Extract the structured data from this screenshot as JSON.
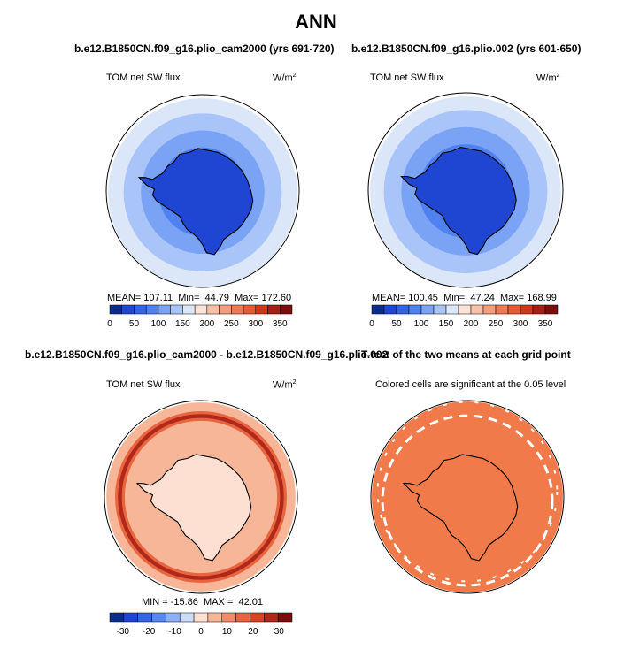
{
  "page": {
    "title": "ANN"
  },
  "colors": {
    "sw_scale": [
      "#0a2d8c",
      "#1e46d2",
      "#3264e6",
      "#4f82f0",
      "#7aa2f5",
      "#a8c4f8",
      "#dbe7f8",
      "#fde3d6",
      "#f8c0a6",
      "#f49c7c",
      "#ef7855",
      "#e85a32",
      "#d0381c",
      "#a81e14",
      "#7d0c0c"
    ],
    "diff_scale": [
      "#0a2d8c",
      "#1e46d2",
      "#3264e6",
      "#5a86f0",
      "#8eaef5",
      "#cadcf6",
      "#fde0d2",
      "#f7b698",
      "#f08c6a",
      "#e8663f",
      "#d84522",
      "#b0281a",
      "#7d0c0c"
    ],
    "signif_fill": "#f07a4a",
    "ocean_light": "#bed0f6",
    "coast": "#000000"
  },
  "chart_data": [
    {
      "type": "heatmap",
      "projection": "south polar stereographic",
      "title": "b.e12.B1850CN.f09_g16.plio_cam2000 (yrs 691-720)",
      "field_label": "TOM net SW flux",
      "units": "W/m",
      "units_sup": "2",
      "stats": {
        "mean_label": "MEAN=",
        "mean": "107.11",
        "min_label": "Min=",
        "min": "44.79",
        "max_label": "Max=",
        "max": "172.60"
      },
      "colorbar": {
        "ticks": [
          "0",
          "50",
          "100",
          "150",
          "200",
          "250",
          "300",
          "350"
        ],
        "range": [
          0,
          375
        ],
        "step": 25
      },
      "rings": [
        {
          "r": 0.98,
          "value": 150
        },
        {
          "r": 0.82,
          "value": 125
        },
        {
          "r": 0.64,
          "value": 100
        },
        {
          "r": 0.46,
          "value": 75
        },
        {
          "r": 0.3,
          "value": 50
        }
      ]
    },
    {
      "type": "heatmap",
      "projection": "south polar stereographic",
      "title": "b.e12.B1850CN.f09_g16.plio.002 (yrs 601-650)",
      "field_label": "TOM net SW flux",
      "units": "W/m",
      "units_sup": "2",
      "stats": {
        "mean_label": "MEAN=",
        "mean": "100.45",
        "min_label": "Min=",
        "min": "47.24",
        "max_label": "Max=",
        "max": "168.99"
      },
      "colorbar": {
        "ticks": [
          "0",
          "50",
          "100",
          "150",
          "200",
          "250",
          "300",
          "350"
        ],
        "range": [
          0,
          375
        ],
        "step": 25
      },
      "rings": [
        {
          "r": 0.98,
          "value": 150
        },
        {
          "r": 0.84,
          "value": 125
        },
        {
          "r": 0.66,
          "value": 100
        },
        {
          "r": 0.48,
          "value": 75
        }
      ]
    },
    {
      "type": "heatmap",
      "projection": "south polar stereographic",
      "title": "b.e12.B1850CN.f09_g16.plio_cam2000 - b.e12.B1850CN.f09_g16.plio.002",
      "field_label": "TOM net SW flux",
      "units": "W/m",
      "units_sup": "2",
      "stats": {
        "min_label": "MIN =",
        "min": "-15.86",
        "max_label": "MAX =",
        "max": "42.01"
      },
      "colorbar": {
        "ticks": [
          "-30",
          "-20",
          "-10",
          "0",
          "10",
          "20",
          "30"
        ],
        "range": [
          -35,
          35
        ],
        "step": 5
      }
    },
    {
      "type": "heatmap",
      "projection": "south polar stereographic",
      "title": "T-test of the two means at each grid point",
      "subtitle": "Colored cells are significant at the 0.05 level"
    }
  ]
}
